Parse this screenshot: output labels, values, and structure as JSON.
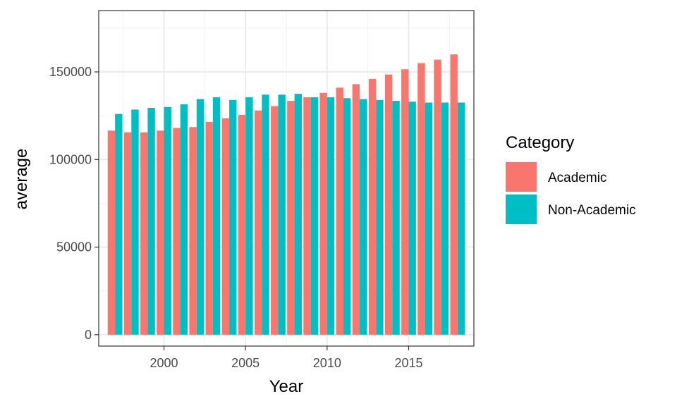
{
  "chart_data": {
    "type": "bar",
    "xlabel": "Year",
    "ylabel": "average",
    "x": [
      1997,
      1998,
      1999,
      2000,
      2001,
      2002,
      2003,
      2004,
      2005,
      2006,
      2007,
      2008,
      2009,
      2010,
      2011,
      2012,
      2013,
      2014,
      2015,
      2016,
      2017,
      2018
    ],
    "xlim": [
      1996,
      2019
    ],
    "ylim": [
      -6500,
      185000
    ],
    "xticks": [
      2000,
      2005,
      2010,
      2015
    ],
    "yticks": [
      0,
      50000,
      100000,
      150000
    ],
    "xtick_labels": [
      "2000",
      "2005",
      "2010",
      "2015"
    ],
    "ytick_labels": [
      "0",
      "50000",
      "100000",
      "150000"
    ],
    "grid": true,
    "legend": {
      "title": "Category",
      "position": "right"
    },
    "series": [
      {
        "name": "Academic",
        "color": "#F8766D",
        "values": [
          116500,
          115500,
          115500,
          116500,
          118000,
          118500,
          121500,
          123500,
          125500,
          128000,
          130500,
          133500,
          135500,
          138000,
          141000,
          143000,
          146000,
          148500,
          151500,
          155000,
          157000,
          160000
        ]
      },
      {
        "name": "Non-Academic",
        "color": "#00BFC4",
        "values": [
          126000,
          128500,
          129500,
          130000,
          131500,
          134500,
          135500,
          134000,
          135500,
          137000,
          137000,
          137500,
          135500,
          135500,
          135000,
          134500,
          134000,
          133500,
          133000,
          132500,
          132500,
          132500
        ]
      }
    ]
  }
}
